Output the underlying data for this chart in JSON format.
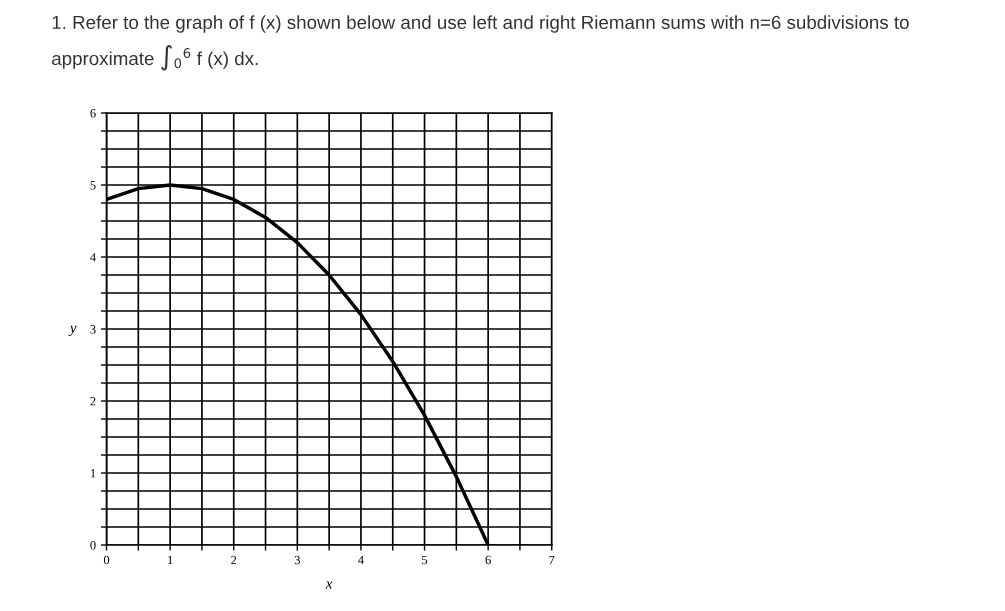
{
  "chart_data": {
    "type": "line",
    "title": "1. Refer to the graph of f (x) shown below and use left and right Riemann sums with n=6 subdivisions to\napproximate ∫$_{0}$$^{6}$ f (x) dx.",
    "xlabel": "x",
    "ylabel": "y",
    "x": [
      0,
      0.5,
      1,
      1.5,
      2,
      2.5,
      3,
      3.5,
      4,
      4.5,
      5,
      5.5,
      6
    ],
    "series": [
      {
        "color": "#000000",
        "values": [
          4.8,
          4.95,
          5,
          4.95,
          4.8,
          4.55,
          4.2,
          3.75,
          3.2,
          2.55,
          1.8,
          0.95,
          0
        ]
      }
    ],
    "xlim": [
      0,
      7
    ],
    "ylim": [
      0,
      6
    ],
    "xticks": [
      0,
      {
        "value": 0.5,
        "label": null
      },
      1,
      {
        "value": 1.5,
        "label": null
      },
      2,
      {
        "value": 2.5,
        "label": null
      },
      3,
      {
        "value": 3.5,
        "label": null
      },
      4,
      {
        "value": 4.5,
        "label": null
      },
      5,
      {
        "value": 5.5,
        "label": null
      },
      6,
      {
        "value": 6.5,
        "label": null
      },
      7
    ],
    "yticks": [
      0,
      {
        "value": 0.25,
        "label": null
      },
      {
        "value": 0.5,
        "label": null
      },
      {
        "value": 0.75,
        "label": null
      },
      1,
      {
        "value": 1.25,
        "label": null
      },
      {
        "value": 1.5,
        "label": null
      },
      {
        "value": 1.75,
        "label": null
      },
      2,
      {
        "value": 2.25,
        "label": null
      },
      {
        "value": 2.5,
        "label": null
      },
      {
        "value": 2.75,
        "label": null
      },
      3,
      {
        "value": 3.25,
        "label": null
      },
      {
        "value": 3.5,
        "label": null
      },
      {
        "value": 3.75,
        "label": null
      },
      4,
      {
        "value": 4.25,
        "label": null
      },
      {
        "value": 4.5,
        "label": null
      },
      {
        "value": 4.75,
        "label": null
      },
      5,
      {
        "value": 5.25,
        "label": null
      },
      {
        "value": 5.5,
        "label": null
      },
      {
        "value": 5.75,
        "label": null
      },
      6
    ],
    "grid": true,
    "marker": "none",
    "line_style": "solid",
    "legend": false
  }
}
